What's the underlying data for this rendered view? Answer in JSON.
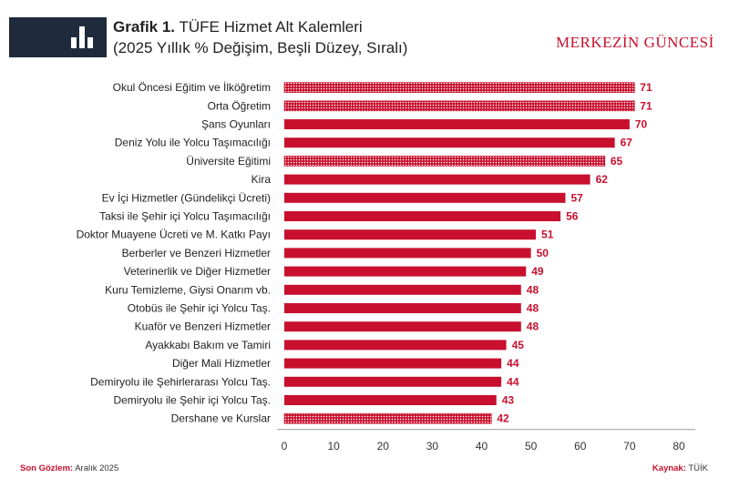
{
  "header": {
    "title_bold": "Grafik 1.",
    "title_rest": "TÜFE Hizmet Alt Kalemleri",
    "subtitle": "(2025 Yıllık % Değişim, Beşli Düzey, Sıralı)",
    "brand": "MERKEZİN GÜNCESİ"
  },
  "footer": {
    "left_label": "Son Gözlem:",
    "left_value": "Aralık 2025",
    "right_label": "Kaynak:",
    "right_value": "TÜİK"
  },
  "colors": {
    "bar": "#c8102e",
    "logo_bg": "#1f2a3c"
  },
  "chart_data": {
    "type": "bar",
    "orientation": "horizontal",
    "categories": [
      "Okul Öncesi Eğitim ve İlköğretim",
      "Orta Öğretim",
      "Şans Oyunları",
      "Deniz Yolu ile Yolcu Taşımacılığı",
      "Üniversite Eğitimi",
      "Kira",
      "Ev İçi Hizmetler (Gündelikçi Ücreti)",
      "Taksi ile Şehir içi Yolcu Taşımacılığı",
      "Doktor Muayene Ücreti ve M. Katkı Payı",
      "Berberler ve Benzeri Hizmetler",
      "Veterinerlik ve Diğer Hizmetler",
      "Kuru Temizleme, Giysi Onarım vb.",
      "Otobüs ile Şehir içi Yolcu Taş.",
      "Kuaför ve Benzeri Hizmetler",
      "Ayakkabı Bakım ve Tamiri",
      "Diğer Mali Hizmetler",
      "Demiryolu ile Şehirlerarası Yolcu Taş.",
      "Demiryolu ile Şehir içi Yolcu Taş.",
      "Dershane ve Kurslar"
    ],
    "values": [
      71,
      71,
      70,
      67,
      65,
      62,
      57,
      56,
      51,
      50,
      49,
      48,
      48,
      48,
      45,
      44,
      44,
      43,
      42
    ],
    "patterned": [
      true,
      true,
      false,
      false,
      true,
      false,
      false,
      false,
      false,
      false,
      false,
      false,
      false,
      false,
      false,
      false,
      false,
      false,
      true
    ],
    "xlim": [
      0,
      80
    ],
    "xticks": [
      0,
      10,
      20,
      30,
      40,
      50,
      60,
      70,
      80
    ],
    "title": "TÜFE Hizmet Alt Kalemleri",
    "xlabel": "",
    "ylabel": ""
  }
}
